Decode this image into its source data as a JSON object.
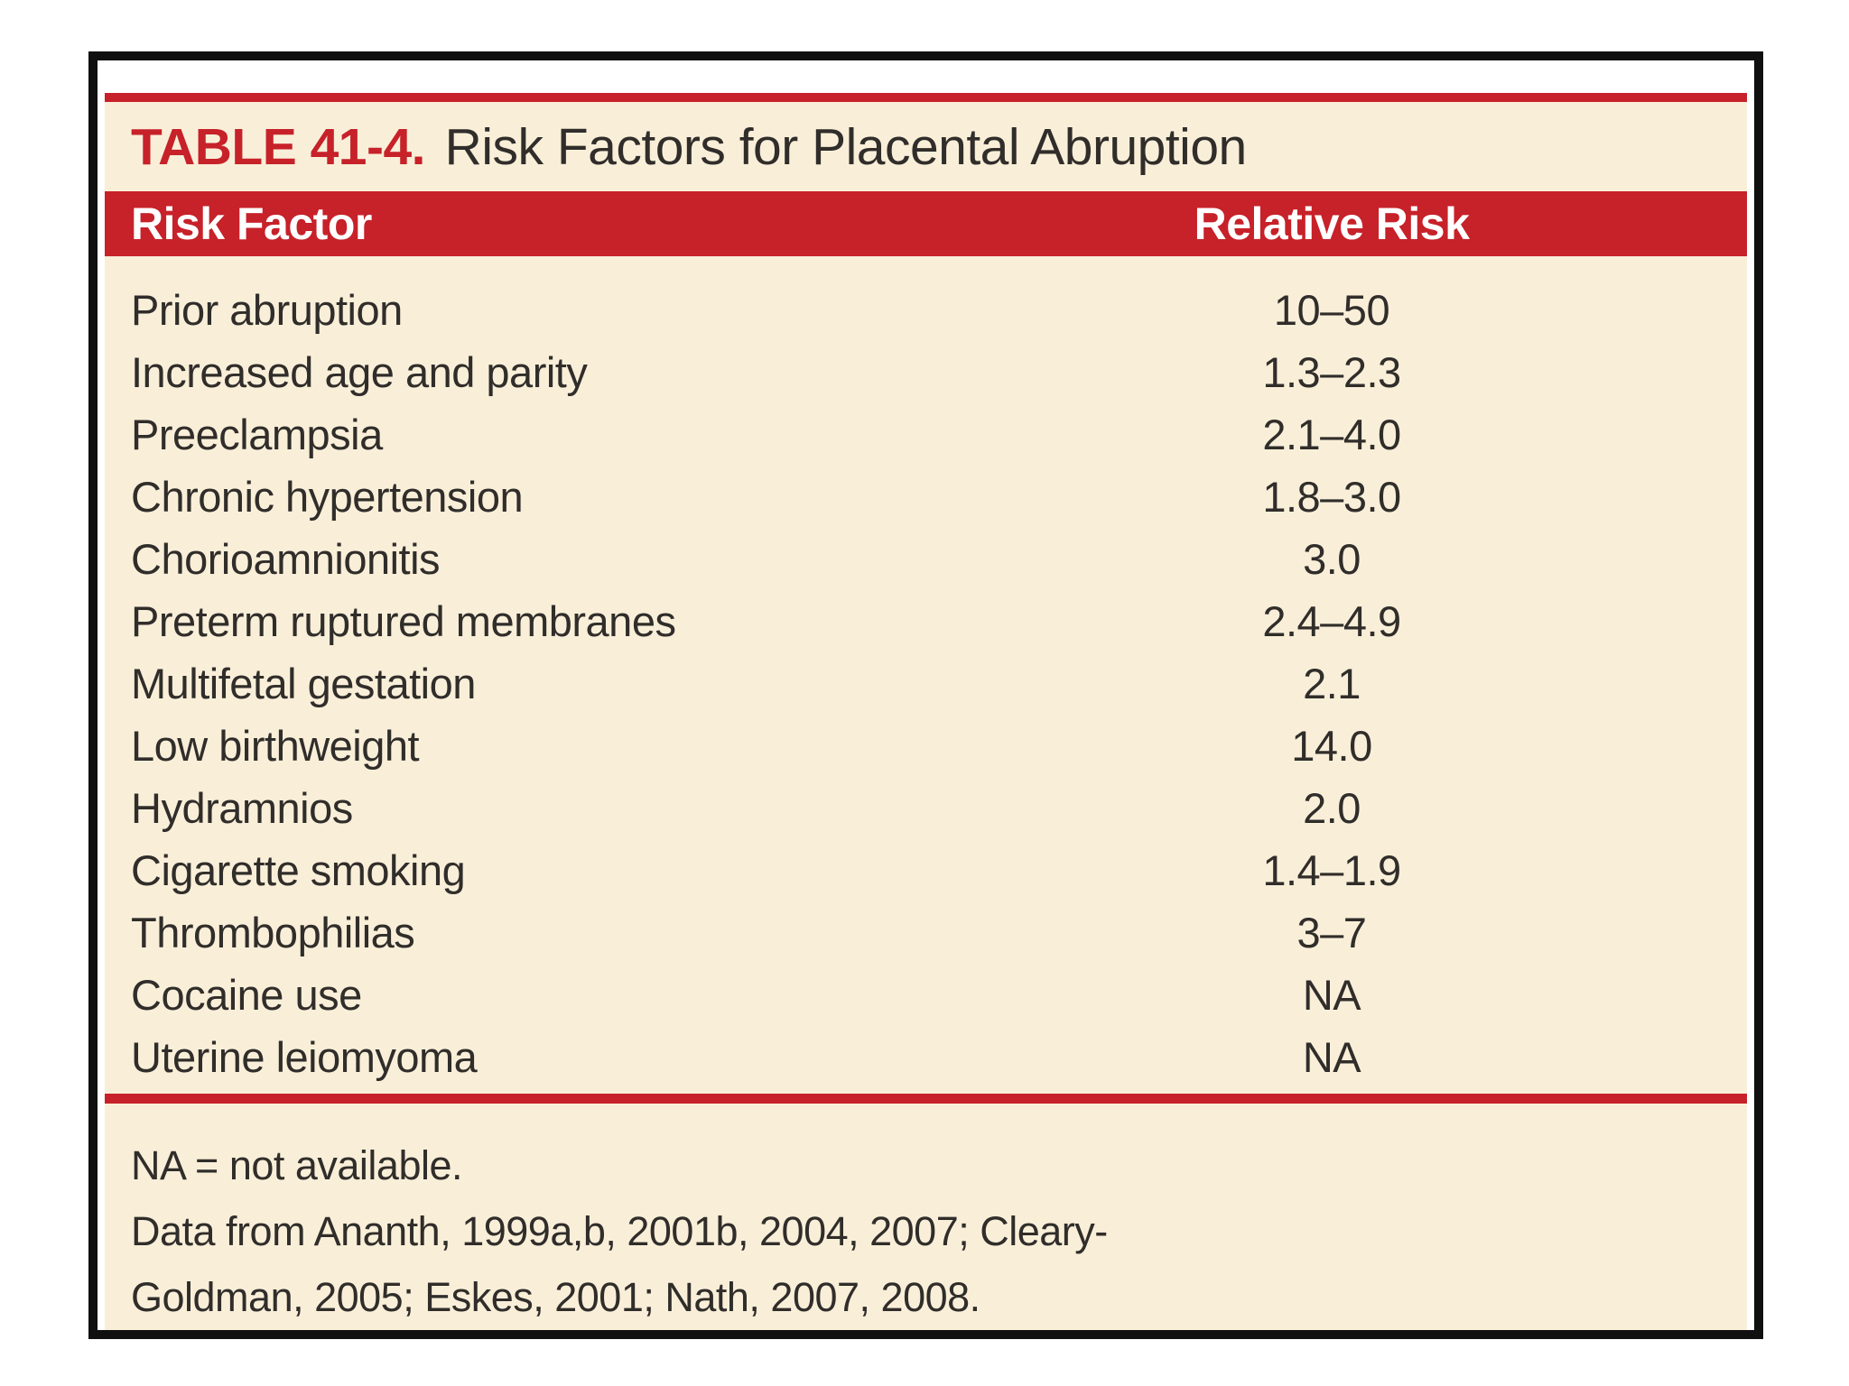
{
  "colors": {
    "accent_red": "#c72129",
    "panel_cream": "#f9efd9",
    "text_dark": "#302d2a",
    "header_text": "#ffffff",
    "border_black": "#101010",
    "page_bg": "#ffffff"
  },
  "table": {
    "label": "TABLE 41-4.",
    "title": "Risk Factors for Placental Abruption",
    "columns": [
      "Risk Factor",
      "Relative Risk"
    ],
    "rows": [
      {
        "factor": "Prior abruption",
        "risk": "10–50"
      },
      {
        "factor": "Increased age and parity",
        "risk": "1.3–2.3"
      },
      {
        "factor": "Preeclampsia",
        "risk": "2.1–4.0"
      },
      {
        "factor": "Chronic hypertension",
        "risk": "1.8–3.0"
      },
      {
        "factor": "Chorioamnionitis",
        "risk": "3.0"
      },
      {
        "factor": "Preterm ruptured membranes",
        "risk": "2.4–4.9"
      },
      {
        "factor": "Multifetal gestation",
        "risk": "2.1"
      },
      {
        "factor": "Low birthweight",
        "risk": "14.0"
      },
      {
        "factor": "Hydramnios",
        "risk": "2.0"
      },
      {
        "factor": "Cigarette smoking",
        "risk": "1.4–1.9"
      },
      {
        "factor": "Thrombophilias",
        "risk": "3–7"
      },
      {
        "factor": "Cocaine use",
        "risk": "NA"
      },
      {
        "factor": "Uterine leiomyoma",
        "risk": "NA"
      }
    ],
    "footnote_lines": [
      "NA = not available.",
      "Data from Ananth, 1999a,b, 2001b, 2004, 2007; Cleary-",
      "Goldman, 2005; Eskes, 2001; Nath, 2007, 2008."
    ]
  }
}
